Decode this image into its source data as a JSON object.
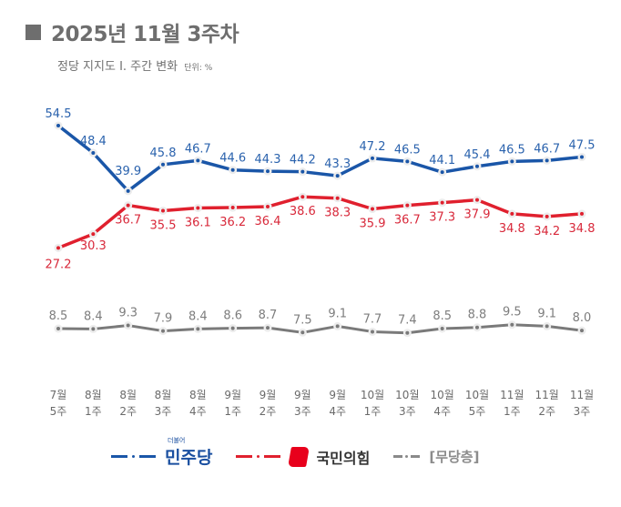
{
  "header": {
    "title": "2025년 11월 3주차",
    "subtitle": "정당 지지도  Ⅰ. 주간 변화",
    "unit": "단위: %"
  },
  "legend": {
    "dpk_label": "민주당",
    "dpk_small": "더불어",
    "ppp_label": "국민의힘",
    "none_label": "[무당층]"
  },
  "chart_data": {
    "type": "line",
    "title": "정당 지지도 Ⅰ. 주간 변화",
    "unit": "%",
    "grid": false,
    "legend_position": "bottom",
    "categories": [
      [
        "7월",
        "5주"
      ],
      [
        "8월",
        "1주"
      ],
      [
        "8월",
        "2주"
      ],
      [
        "8월",
        "3주"
      ],
      [
        "8월",
        "4주"
      ],
      [
        "9월",
        "1주"
      ],
      [
        "9월",
        "2주"
      ],
      [
        "9월",
        "3주"
      ],
      [
        "9월",
        "4주"
      ],
      [
        "10월",
        "1주"
      ],
      [
        "10월",
        "3주"
      ],
      [
        "10월",
        "4주"
      ],
      [
        "10월",
        "5주"
      ],
      [
        "11월",
        "1주"
      ],
      [
        "11월",
        "2주"
      ],
      [
        "11월",
        "3주"
      ]
    ],
    "series": [
      {
        "name": "더불어민주당",
        "color": "#1a56a8",
        "label_color": "#2a62ad",
        "values": [
          54.5,
          48.4,
          39.9,
          45.8,
          46.7,
          44.6,
          44.3,
          44.2,
          43.3,
          47.2,
          46.5,
          44.1,
          45.4,
          46.5,
          46.7,
          47.5
        ]
      },
      {
        "name": "국민의힘",
        "color": "#e0202e",
        "label_color": "#d8283a",
        "values": [
          27.2,
          30.3,
          36.7,
          35.5,
          36.1,
          36.2,
          36.4,
          38.6,
          38.3,
          35.9,
          36.7,
          37.3,
          37.9,
          34.8,
          34.2,
          34.8
        ]
      },
      {
        "name": "무당층",
        "color": "#7a7a7a",
        "label_color": "#7d7d7d",
        "values": [
          8.5,
          8.4,
          9.3,
          7.9,
          8.4,
          8.6,
          8.7,
          7.5,
          9.1,
          7.7,
          7.4,
          8.5,
          8.8,
          9.5,
          9.1,
          8.0
        ]
      }
    ]
  }
}
